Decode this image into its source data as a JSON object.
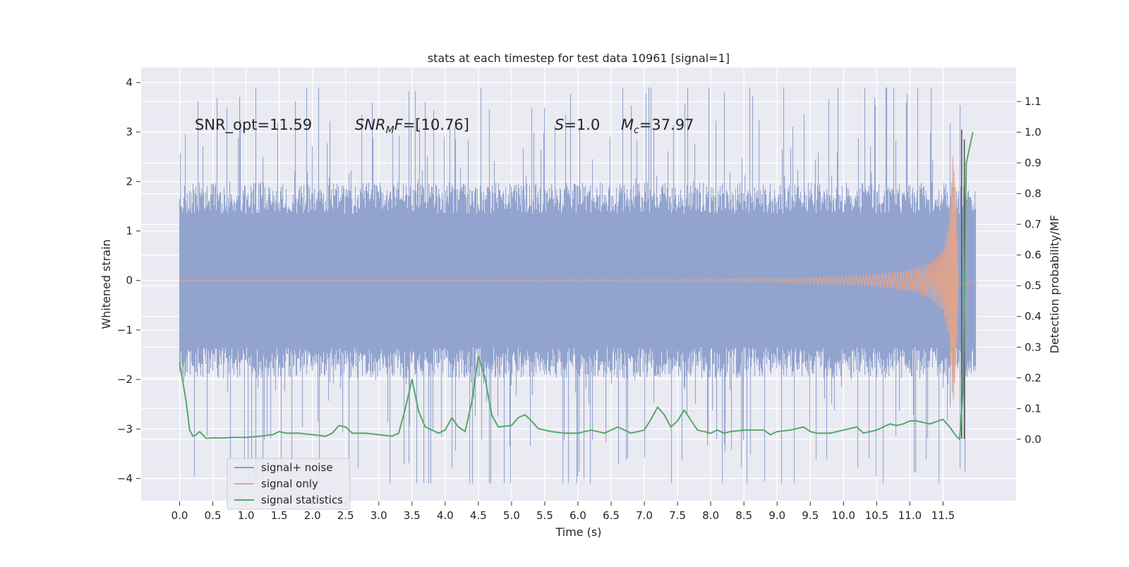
{
  "chart_data": {
    "type": "line",
    "title": "stats at each timestep for test data 10961 [signal=1]",
    "xlabel": "Time (s)",
    "ylabel": "Whitened strain",
    "y2label": "Detection probability/MF",
    "xlim": [
      -0.58,
      12.6
    ],
    "ylim": [
      -4.45,
      4.3
    ],
    "y2lim": [
      -0.2,
      1.21
    ],
    "x_ticks": [
      "0.0",
      "0.5",
      "1.0",
      "1.5",
      "2.0",
      "2.5",
      "3.0",
      "3.5",
      "4.0",
      "4.5",
      "5.0",
      "5.5",
      "6.0",
      "6.5",
      "7.0",
      "7.5",
      "8.0",
      "8.5",
      "9.0",
      "9.5",
      "10.0",
      "10.5",
      "11.0",
      "11.5"
    ],
    "y_ticks": [
      "4",
      "3",
      "2",
      "1",
      "0",
      "−1",
      "−2",
      "−3",
      "−4"
    ],
    "y2_ticks": [
      "1.1",
      "1.0",
      "0.9",
      "0.8",
      "0.7",
      "0.6",
      "0.5",
      "0.4",
      "0.3",
      "0.2",
      "0.1",
      "0.0"
    ],
    "grid": true,
    "legend_position": "lower-left",
    "colors": {
      "plot_bg": "#eaeaf2",
      "grid": "#ffffff",
      "noise": "#8da0cb",
      "signal": "#e5a48a",
      "stats": "#55a868",
      "marker": "#555555"
    },
    "annotations": [
      {
        "label": "SNR_opt=11.59",
        "x": 0.22,
        "y": 3.15
      },
      {
        "label": "SNR_MF=[10.76]",
        "x": 2.62,
        "y": 3.15
      },
      {
        "label": "S=1.0",
        "x": 5.6,
        "y": 3.15
      },
      {
        "label": "M_c=37.97",
        "x": 6.6,
        "y": 3.15
      }
    ],
    "annotation_parts": {
      "snr_opt": "SNR_opt=11.59",
      "snr_mf_sym": "SNR",
      "snr_mf_sub": "M",
      "snr_mf_tail": "F",
      "snr_mf_value": "=[10.76]",
      "s_sym": "S",
      "s_value": "=1.0",
      "mc_sym": "M",
      "mc_sub": "c",
      "mc_value": "=37.97"
    },
    "series": [
      {
        "name": "signal+ noise",
        "x_range": [
          0.0,
          12.0
        ],
        "typical_envelope": [
          -1.8,
          1.8
        ],
        "peak_extremes": [
          -4.1,
          3.9
        ]
      },
      {
        "name": "signal only",
        "x": [
          0.0,
          7.5,
          9.0,
          10.0,
          10.5,
          11.0,
          11.3,
          11.5,
          11.6,
          11.65,
          11.7,
          11.73
        ],
        "amplitude": [
          0.0,
          0.02,
          0.04,
          0.08,
          0.12,
          0.2,
          0.35,
          0.6,
          1.2,
          2.6,
          1.5,
          0.0
        ]
      },
      {
        "name": "signal statistics",
        "x": [
          0.0,
          0.1,
          0.15,
          0.2,
          0.25,
          0.3,
          0.4,
          0.5,
          0.6,
          0.8,
          1.0,
          1.2,
          1.4,
          1.5,
          1.6,
          1.8,
          2.0,
          2.2,
          2.3,
          2.4,
          2.5,
          2.6,
          2.8,
          3.0,
          3.2,
          3.3,
          3.4,
          3.5,
          3.6,
          3.7,
          3.9,
          4.0,
          4.1,
          4.2,
          4.3,
          4.4,
          4.5,
          4.6,
          4.7,
          4.8,
          5.0,
          5.1,
          5.2,
          5.3,
          5.4,
          5.6,
          5.8,
          6.0,
          6.2,
          6.4,
          6.5,
          6.6,
          6.8,
          7.0,
          7.1,
          7.2,
          7.3,
          7.4,
          7.5,
          7.6,
          7.8,
          8.0,
          8.1,
          8.2,
          8.3,
          8.5,
          8.8,
          8.9,
          9.0,
          9.2,
          9.4,
          9.5,
          9.6,
          9.8,
          10.0,
          10.2,
          10.3,
          10.5,
          10.7,
          10.8,
          10.9,
          11.0,
          11.1,
          11.3,
          11.5,
          11.6,
          11.7,
          11.75,
          11.8,
          11.85,
          11.9,
          11.95
        ],
        "values": [
          0.25,
          0.12,
          0.03,
          0.01,
          0.015,
          0.025,
          0.003,
          0.005,
          0.004,
          0.006,
          0.006,
          0.01,
          0.015,
          0.025,
          0.02,
          0.02,
          0.015,
          0.01,
          0.02,
          0.045,
          0.04,
          0.02,
          0.02,
          0.015,
          0.01,
          0.02,
          0.1,
          0.195,
          0.09,
          0.04,
          0.02,
          0.03,
          0.07,
          0.04,
          0.025,
          0.12,
          0.27,
          0.2,
          0.08,
          0.04,
          0.045,
          0.07,
          0.08,
          0.06,
          0.035,
          0.025,
          0.02,
          0.02,
          0.03,
          0.02,
          0.03,
          0.04,
          0.02,
          0.03,
          0.065,
          0.105,
          0.08,
          0.04,
          0.06,
          0.095,
          0.03,
          0.02,
          0.03,
          0.02,
          0.025,
          0.03,
          0.03,
          0.015,
          0.025,
          0.03,
          0.04,
          0.025,
          0.02,
          0.02,
          0.03,
          0.04,
          0.02,
          0.03,
          0.05,
          0.045,
          0.05,
          0.06,
          0.06,
          0.05,
          0.065,
          0.04,
          0.01,
          0.0,
          0.15,
          0.9,
          0.95,
          1.0
        ]
      }
    ],
    "vertical_markers": [
      {
        "x": 11.78,
        "y_from": -3.2,
        "y_to": 3.05
      },
      {
        "x": 11.82,
        "y_from": -3.2,
        "y_to": 2.85
      }
    ]
  }
}
